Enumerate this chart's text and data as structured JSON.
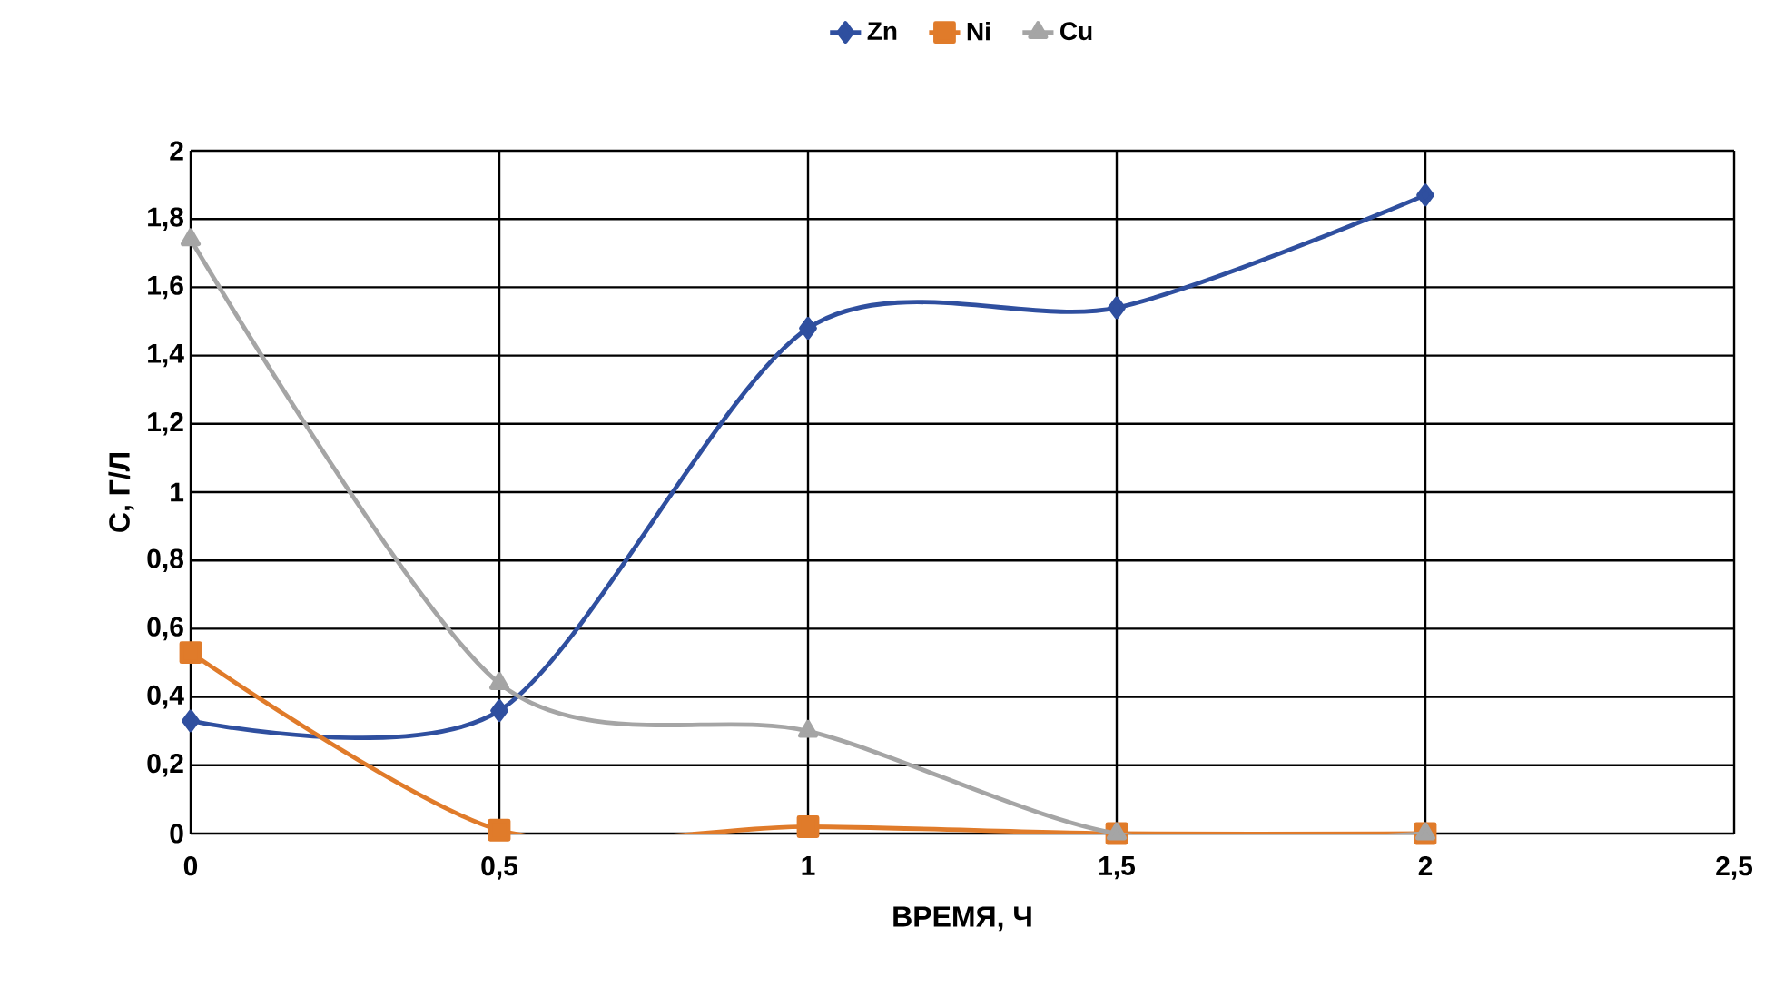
{
  "chart_data": {
    "type": "line",
    "xlabel": "ВРЕМЯ, Ч",
    "ylabel": "С, Г/Л",
    "x": [
      0,
      0.5,
      1,
      1.5,
      2
    ],
    "series": [
      {
        "name": "Zn",
        "color": "#2f4f9f",
        "marker": "diamond",
        "values": [
          0.33,
          0.36,
          1.48,
          1.54,
          1.87
        ]
      },
      {
        "name": "Ni",
        "color": "#e07b2a",
        "marker": "square",
        "values": [
          0.53,
          0.01,
          0.02,
          0,
          0
        ]
      },
      {
        "name": "Cu",
        "color": "#a5a5a5",
        "marker": "triangle",
        "values": [
          1.74,
          0.44,
          0.3,
          0,
          0
        ]
      }
    ],
    "xlim": [
      0,
      2.5
    ],
    "ylim": [
      0,
      2
    ],
    "xticks": [
      0,
      {
        "value": 0.5,
        "label": "0,5"
      },
      1,
      {
        "value": 1.5,
        "label": "1,5"
      },
      2,
      {
        "value": 2.5,
        "label": "2,5"
      }
    ],
    "yticks": [
      0,
      {
        "value": 0.2,
        "label": "0,2"
      },
      {
        "value": 0.4,
        "label": "0,4"
      },
      {
        "value": 0.6,
        "label": "0,6"
      },
      {
        "value": 0.8,
        "label": "0,8"
      },
      1,
      {
        "value": 1.2,
        "label": "1,2"
      },
      {
        "value": 1.4,
        "label": "1,4"
      },
      {
        "value": 1.6,
        "label": "1,6"
      },
      {
        "value": 1.8,
        "label": "1,8"
      },
      2
    ],
    "grid": true,
    "legend": "top",
    "line_style": "solid"
  }
}
